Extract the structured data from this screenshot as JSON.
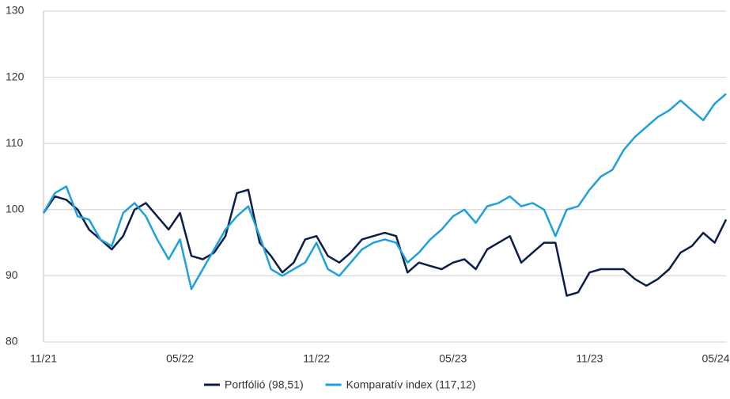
{
  "chart_data": {
    "type": "line",
    "categories": [
      "11/21",
      null,
      null,
      null,
      null,
      null,
      null,
      null,
      null,
      null,
      null,
      null,
      "05/22",
      null,
      null,
      null,
      null,
      null,
      null,
      null,
      null,
      null,
      null,
      null,
      "11/22",
      null,
      null,
      null,
      null,
      null,
      null,
      null,
      null,
      null,
      null,
      null,
      "05/23",
      null,
      null,
      null,
      null,
      null,
      null,
      null,
      null,
      null,
      null,
      null,
      "11/23",
      null,
      null,
      null,
      null,
      null,
      null,
      null,
      null,
      null,
      null,
      null,
      "05/24"
    ],
    "series": [
      {
        "name": "Portfólió (98,51)",
        "color": "#0b1d4a",
        "values": [
          99.5,
          102,
          101.5,
          100,
          97,
          95.5,
          94,
          96,
          100,
          101,
          99,
          97,
          99.5,
          93,
          92.5,
          93.5,
          96,
          102.5,
          103,
          95,
          93,
          90.5,
          92,
          95.5,
          96,
          93,
          92,
          93.5,
          95.5,
          96,
          96.5,
          96,
          90.5,
          92,
          91.5,
          91,
          92,
          92.5,
          91,
          94,
          95,
          96,
          92,
          93.5,
          95,
          95,
          87,
          87.5,
          90.5,
          91,
          91,
          91,
          89.5,
          88.5,
          89.5,
          91,
          93.5,
          94.5,
          96.5,
          95,
          98.5
        ]
      },
      {
        "name": "Komparatív index (117,12)",
        "color": "#1ea0dc",
        "values": [
          99.5,
          102.5,
          103.5,
          99,
          98.5,
          95.5,
          94.5,
          99.5,
          101,
          99,
          95.5,
          92.5,
          95.5,
          88,
          91,
          94,
          97,
          99,
          100.5,
          96,
          91,
          90,
          91,
          92,
          95,
          91,
          90,
          92,
          94,
          95,
          95.5,
          95,
          92,
          93.5,
          95.5,
          97,
          99,
          100,
          98,
          100.5,
          101,
          102,
          100.5,
          101,
          100,
          96,
          100,
          100.5,
          103,
          105,
          106,
          109,
          111,
          112.5,
          114,
          115,
          116.5,
          115,
          113.5,
          116,
          117.5
        ]
      }
    ],
    "ylim": [
      80,
      130
    ],
    "yticks": [
      80,
      90,
      100,
      110,
      120,
      130
    ],
    "grid": true
  }
}
